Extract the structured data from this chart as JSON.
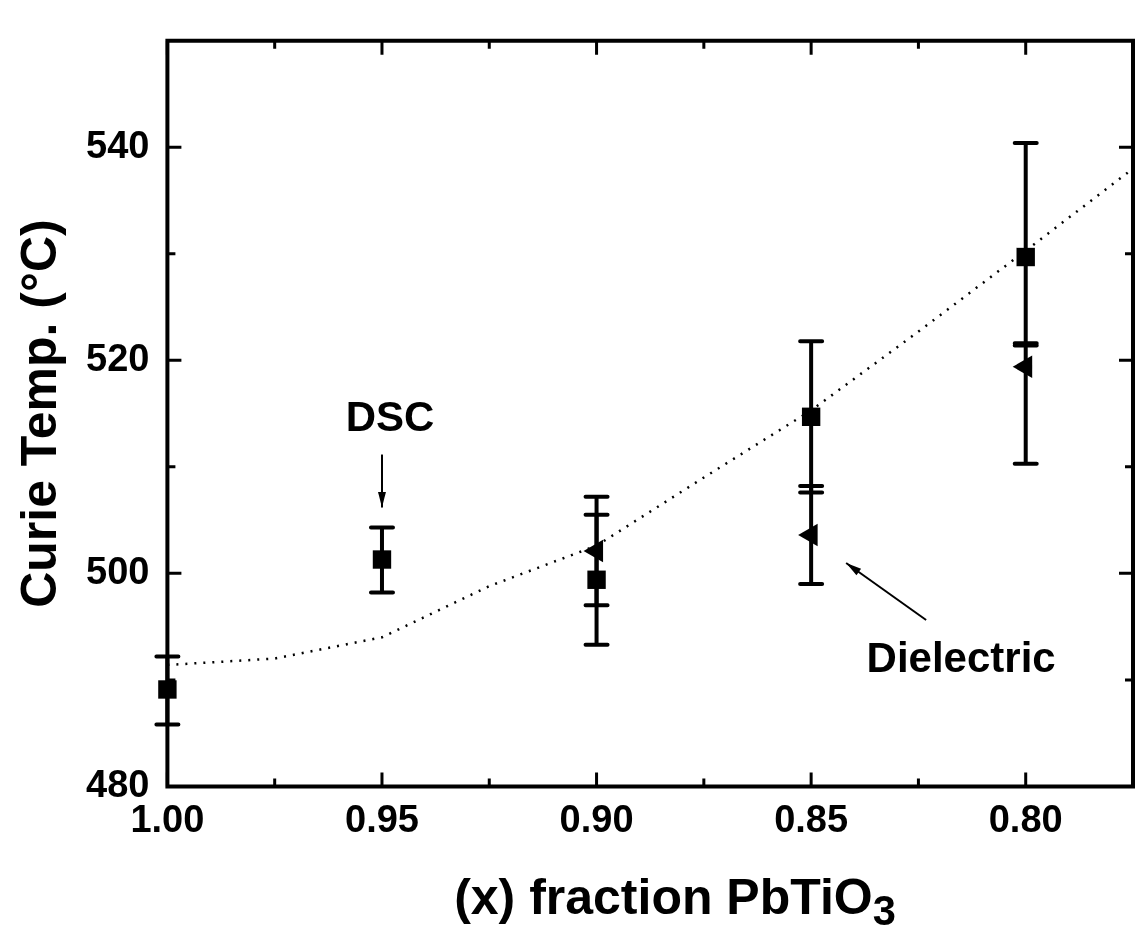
{
  "chart_data": {
    "type": "scatter",
    "xlabel": "(x) fraction PbTiO$_{3}$",
    "ylabel": "Curie Temp. (°C)",
    "xlim": [
      1.0,
      0.775
    ],
    "xticks": [
      {
        "value": 1.0,
        "label": "1.00"
      },
      {
        "value": 0.975,
        "label": null
      },
      {
        "value": 0.95,
        "label": "0.95"
      },
      {
        "value": 0.925,
        "label": null
      },
      {
        "value": 0.9,
        "label": "0.90"
      },
      {
        "value": 0.875,
        "label": null
      },
      {
        "value": 0.85,
        "label": "0.85"
      },
      {
        "value": 0.825,
        "label": null
      },
      {
        "value": 0.8,
        "label": "0.80"
      }
    ],
    "ylim": [
      480,
      550
    ],
    "yticks": [
      480,
      {
        "value": 490,
        "label": null
      },
      500,
      {
        "value": 510,
        "label": null
      },
      520,
      {
        "value": 530,
        "label": null
      },
      540
    ],
    "x": [
      1.0,
      0.95,
      0.9,
      0.85,
      0.8
    ],
    "series": [
      {
        "color": "#000000",
        "marker": "square",
        "values": [
          489.1,
          501.3,
          499.4,
          514.7,
          529.7
        ],
        "errors": [
          [
            485.8,
            492.2
          ],
          [
            498.2,
            504.3
          ],
          [
            493.3,
            507.2
          ],
          [
            507.6,
            521.8
          ],
          [
            521.4,
            540.4
          ]
        ]
      },
      {
        "color": "#000000",
        "marker": "triangle",
        "x": [
          0.9,
          0.85,
          0.8
        ],
        "values": [
          502.1,
          503.6,
          519.4
        ],
        "errors": [
          [
            497.0,
            505.5
          ],
          [
            499.0,
            508.2
          ],
          [
            510.3,
            521.6
          ]
        ]
      },
      {
        "type": "line",
        "color": "#000000",
        "marker": "none",
        "line_style": "dotted",
        "x": [
          1.0,
          0.975,
          0.95,
          0.925,
          0.9,
          0.875,
          0.85,
          0.825,
          0.8,
          0.775
        ],
        "values": [
          491.4,
          492.0,
          494.0,
          498.8,
          502.6,
          509.0,
          515.3,
          522.7,
          530.3,
          538.0
        ]
      }
    ],
    "annotations": [
      {
        "text": "DSC",
        "x": 0.95,
        "y": 501.3
      },
      {
        "text": "Dielectric",
        "x": 0.85,
        "y": 503.6
      }
    ]
  }
}
